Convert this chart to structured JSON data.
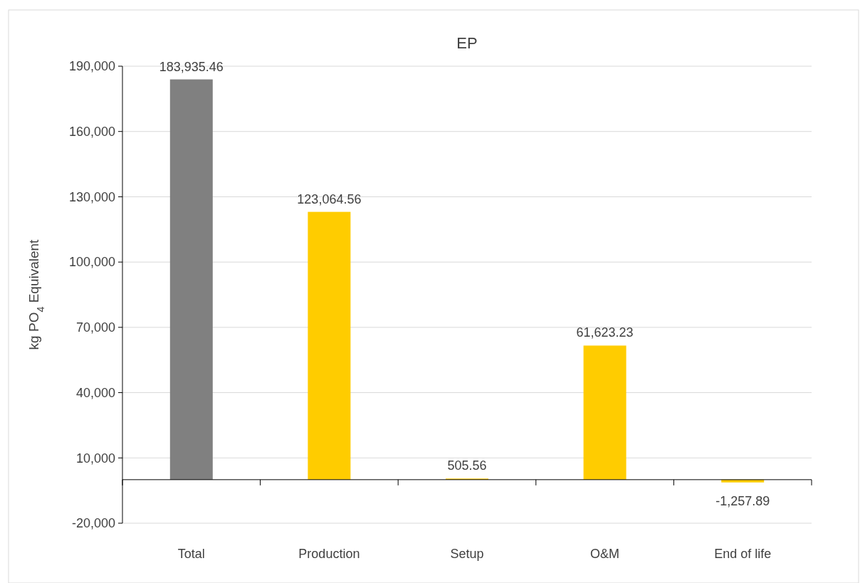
{
  "chart_data": {
    "type": "bar",
    "title": "EP",
    "ylabel": "kg PO$_{4}$ Equivalent",
    "categories": [
      "Total",
      "Production",
      "Setup",
      "O&M",
      "End of life"
    ],
    "values": [
      183935.46,
      123064.56,
      505.56,
      61623.23,
      -1257.89
    ],
    "value_labels": [
      "183,935.46",
      "123,064.56",
      "505.56",
      "61,623.23",
      "-1,257.89"
    ],
    "colors": [
      "#808080",
      "#ffcc00",
      "#ffcc00",
      "#ffcc00",
      "#ffcc00"
    ],
    "ylim": [
      -20000,
      190000
    ],
    "yticks": [
      {
        "value": -20000,
        "label": "-20,000"
      },
      {
        "value": 10000,
        "label": "10,000"
      },
      {
        "value": 40000,
        "label": "40,000"
      },
      {
        "value": 70000,
        "label": "70,000"
      },
      {
        "value": 100000,
        "label": "100,000"
      },
      {
        "value": 130000,
        "label": "130,000"
      },
      {
        "value": 160000,
        "label": "160,000"
      },
      {
        "value": 190000,
        "label": "190,000"
      }
    ],
    "grid": "y"
  }
}
